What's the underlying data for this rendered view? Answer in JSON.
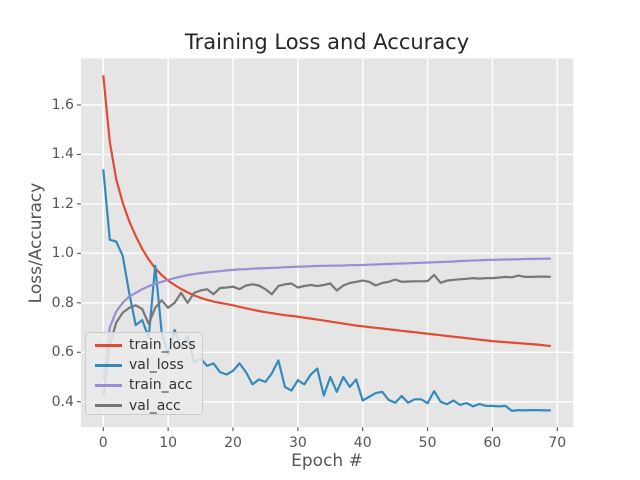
{
  "chart_data": {
    "type": "line",
    "title": "Training Loss and Accuracy",
    "xlabel": "Epoch #",
    "ylabel": "Loss/Accuracy",
    "x": [
      0,
      1,
      2,
      3,
      4,
      5,
      6,
      7,
      8,
      9,
      10,
      11,
      12,
      13,
      14,
      15,
      16,
      17,
      18,
      19,
      20,
      21,
      22,
      23,
      24,
      25,
      26,
      27,
      28,
      29,
      30,
      31,
      32,
      33,
      34,
      35,
      36,
      37,
      38,
      39,
      40,
      41,
      42,
      43,
      44,
      45,
      46,
      47,
      48,
      49,
      50,
      51,
      52,
      53,
      54,
      55,
      56,
      57,
      58,
      59,
      60,
      61,
      62,
      63,
      64,
      65,
      66,
      67,
      68,
      69
    ],
    "series": [
      {
        "name": "train_loss",
        "color": "#E24A33",
        "values": [
          1.72,
          1.45,
          1.3,
          1.205,
          1.13,
          1.07,
          1.018,
          0.975,
          0.94,
          0.912,
          0.89,
          0.872,
          0.856,
          0.842,
          0.83,
          0.82,
          0.812,
          0.805,
          0.8,
          0.795,
          0.79,
          0.784,
          0.778,
          0.772,
          0.767,
          0.762,
          0.758,
          0.754,
          0.75,
          0.747,
          0.744,
          0.74,
          0.736,
          0.732,
          0.728,
          0.724,
          0.72,
          0.716,
          0.712,
          0.708,
          0.705,
          0.702,
          0.699,
          0.696,
          0.693,
          0.69,
          0.687,
          0.684,
          0.681,
          0.678,
          0.675,
          0.672,
          0.669,
          0.666,
          0.663,
          0.66,
          0.657,
          0.654,
          0.651,
          0.648,
          0.645,
          0.643,
          0.641,
          0.639,
          0.637,
          0.635,
          0.633,
          0.631,
          0.628,
          0.625
        ]
      },
      {
        "name": "val_loss",
        "color": "#348ABD",
        "values": [
          1.34,
          1.055,
          1.048,
          0.99,
          0.84,
          0.71,
          0.73,
          0.66,
          0.95,
          0.68,
          0.59,
          0.69,
          0.62,
          0.665,
          0.56,
          0.575,
          0.545,
          0.555,
          0.52,
          0.51,
          0.525,
          0.555,
          0.52,
          0.47,
          0.49,
          0.48,
          0.515,
          0.567,
          0.46,
          0.445,
          0.487,
          0.47,
          0.51,
          0.534,
          0.425,
          0.5,
          0.44,
          0.5,
          0.46,
          0.49,
          0.405,
          0.42,
          0.435,
          0.44,
          0.407,
          0.396,
          0.423,
          0.396,
          0.41,
          0.41,
          0.394,
          0.443,
          0.4,
          0.39,
          0.405,
          0.387,
          0.395,
          0.381,
          0.391,
          0.383,
          0.383,
          0.381,
          0.383,
          0.363,
          0.366,
          0.365,
          0.366,
          0.366,
          0.365,
          0.365
        ]
      },
      {
        "name": "train_acc",
        "color": "#988ED5",
        "values": [
          0.49,
          0.7,
          0.765,
          0.8,
          0.825,
          0.84,
          0.855,
          0.867,
          0.877,
          0.885,
          0.893,
          0.9,
          0.906,
          0.912,
          0.916,
          0.92,
          0.923,
          0.926,
          0.928,
          0.931,
          0.933,
          0.935,
          0.936,
          0.938,
          0.939,
          0.94,
          0.941,
          0.942,
          0.944,
          0.945,
          0.946,
          0.947,
          0.948,
          0.949,
          0.9495,
          0.95,
          0.9505,
          0.951,
          0.952,
          0.9525,
          0.953,
          0.954,
          0.955,
          0.956,
          0.957,
          0.958,
          0.959,
          0.96,
          0.961,
          0.962,
          0.963,
          0.964,
          0.965,
          0.966,
          0.967,
          0.969,
          0.97,
          0.971,
          0.972,
          0.973,
          0.974,
          0.9745,
          0.975,
          0.9755,
          0.976,
          0.977,
          0.9775,
          0.978,
          0.9785,
          0.979
        ]
      },
      {
        "name": "val_acc",
        "color": "#777777",
        "values": [
          0.42,
          0.63,
          0.72,
          0.76,
          0.78,
          0.79,
          0.775,
          0.715,
          0.78,
          0.81,
          0.78,
          0.8,
          0.84,
          0.8,
          0.84,
          0.85,
          0.855,
          0.835,
          0.86,
          0.862,
          0.865,
          0.855,
          0.87,
          0.875,
          0.87,
          0.855,
          0.835,
          0.868,
          0.875,
          0.878,
          0.862,
          0.868,
          0.872,
          0.868,
          0.872,
          0.878,
          0.85,
          0.87,
          0.88,
          0.885,
          0.89,
          0.885,
          0.87,
          0.88,
          0.885,
          0.894,
          0.885,
          0.886,
          0.887,
          0.887,
          0.888,
          0.913,
          0.881,
          0.89,
          0.893,
          0.895,
          0.897,
          0.9,
          0.898,
          0.9,
          0.9,
          0.902,
          0.905,
          0.903,
          0.91,
          0.905,
          0.905,
          0.906,
          0.906,
          0.905
        ]
      }
    ],
    "xlim": [
      -3.45,
      72.45
    ],
    "ylim": [
      0.297,
      1.788
    ],
    "x_ticks": [
      0,
      10,
      20,
      30,
      40,
      50,
      60,
      70
    ],
    "y_ticks": [
      0.4,
      0.6,
      0.8,
      1.0,
      1.2,
      1.4,
      1.6
    ],
    "grid": true,
    "legend": {
      "position": "lower left",
      "entries": [
        "train_loss",
        "val_loss",
        "train_acc",
        "val_acc"
      ]
    },
    "style": {
      "axes_bg": "#e5e5e5",
      "grid_color": "#ffffff",
      "tick_color": "#555555",
      "text_color": "#555555",
      "title_color": "#262626",
      "figure_bg": "#ffffff",
      "line_width": 2.2
    }
  }
}
